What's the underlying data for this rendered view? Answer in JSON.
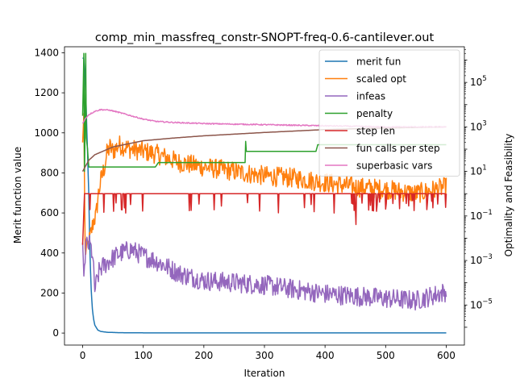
{
  "chart_data": {
    "type": "line",
    "title": "comp_min_massfreq_constr-SNOPT-freq-0.6-cantilever.out",
    "xlabel": "Iteration",
    "ylabel": "Merit function value",
    "y2label": "Optimality and Feasibility",
    "xlim": [
      -30,
      630
    ],
    "ylim": [
      -60,
      1430
    ],
    "y2lim_log10": [
      -6.8,
      6.6
    ],
    "x_ticks": [
      0,
      100,
      200,
      300,
      400,
      500,
      600
    ],
    "y_ticks": [
      0,
      200,
      400,
      600,
      800,
      1000,
      1200,
      1400
    ],
    "y2_ticks": [
      {
        "exp": -5,
        "label": "10",
        "sup": "−5"
      },
      {
        "exp": -3,
        "label": "10",
        "sup": "−3"
      },
      {
        "exp": -1,
        "label": "10",
        "sup": "−1"
      },
      {
        "exp": 1,
        "label": "10",
        "sup": "1"
      },
      {
        "exp": 3,
        "label": "10",
        "sup": "3"
      },
      {
        "exp": 5,
        "label": "10",
        "sup": "5"
      }
    ],
    "n_iterations": 600,
    "legend_position": "top-right",
    "series": [
      {
        "name": "merit fun",
        "axis": "left",
        "color": "#1f77b4",
        "points": [
          [
            0,
            1375
          ],
          [
            2,
            1370
          ],
          [
            5,
            1200
          ],
          [
            8,
            900
          ],
          [
            10,
            700
          ],
          [
            12,
            400
          ],
          [
            14,
            220
          ],
          [
            16,
            120
          ],
          [
            18,
            70
          ],
          [
            20,
            40
          ],
          [
            25,
            15
          ],
          [
            30,
            8
          ],
          [
            40,
            4
          ],
          [
            60,
            2
          ],
          [
            100,
            1
          ],
          [
            600,
            1
          ]
        ]
      },
      {
        "name": "scaled opt",
        "axis": "right",
        "color": "#ff7f0e",
        "base_log10": 1.0,
        "points": [
          [
            0,
            2.3
          ],
          [
            2,
            3.6
          ],
          [
            4,
            -2.6
          ],
          [
            8,
            -2.4
          ],
          [
            12,
            -2.0
          ],
          [
            18,
            -1.2
          ],
          [
            22,
            -1.0
          ],
          [
            26,
            0.0
          ],
          [
            30,
            0.6
          ],
          [
            36,
            1.2
          ],
          [
            40,
            1.8
          ],
          [
            45,
            2.1
          ],
          [
            50,
            1.9
          ],
          [
            60,
            2.2
          ],
          [
            80,
            2.0
          ],
          [
            100,
            1.9
          ],
          [
            120,
            1.8
          ],
          [
            140,
            1.6
          ],
          [
            160,
            1.4
          ],
          [
            200,
            1.2
          ],
          [
            250,
            1.0
          ],
          [
            300,
            0.8
          ],
          [
            350,
            0.7
          ],
          [
            400,
            0.5
          ],
          [
            450,
            0.3
          ],
          [
            500,
            0.2
          ],
          [
            550,
            0.0
          ],
          [
            600,
            0.3
          ]
        ]
      },
      {
        "name": "infeas",
        "axis": "right",
        "color": "#9467bd",
        "base_log10": -3.0,
        "points": [
          [
            0,
            -2.2
          ],
          [
            2,
            -3.7
          ],
          [
            5,
            -2.3
          ],
          [
            12,
            -2.3
          ],
          [
            16,
            -2.7
          ],
          [
            20,
            -4.3
          ],
          [
            24,
            -3.9
          ],
          [
            28,
            -3.4
          ],
          [
            40,
            -3.1
          ],
          [
            50,
            -2.9
          ],
          [
            60,
            -2.7
          ],
          [
            80,
            -2.5
          ],
          [
            100,
            -2.8
          ],
          [
            120,
            -3.0
          ],
          [
            140,
            -3.3
          ],
          [
            160,
            -3.6
          ],
          [
            200,
            -3.9
          ],
          [
            250,
            -4.0
          ],
          [
            300,
            -4.1
          ],
          [
            350,
            -4.3
          ],
          [
            400,
            -4.5
          ],
          [
            450,
            -4.6
          ],
          [
            500,
            -4.7
          ],
          [
            550,
            -4.8
          ],
          [
            600,
            -4.4
          ]
        ]
      },
      {
        "name": "penalty",
        "axis": "right",
        "color": "#2ca02c",
        "base_log10": 1.0,
        "points": [
          [
            0,
            3.5
          ],
          [
            2,
            6.3
          ],
          [
            3,
            1.0
          ],
          [
            4,
            3.0
          ],
          [
            5,
            6.3
          ],
          [
            6,
            2.5
          ],
          [
            8,
            2.0
          ],
          [
            10,
            1.2
          ],
          [
            12,
            1.2
          ],
          [
            120,
            1.2
          ],
          [
            125,
            1.4
          ],
          [
            268,
            1.4
          ],
          [
            268,
            2.8
          ],
          [
            270,
            1.9
          ],
          [
            385,
            1.9
          ],
          [
            388,
            2.2
          ],
          [
            600,
            2.2
          ]
        ]
      },
      {
        "name": "step len",
        "axis": "right",
        "color": "#d62728",
        "base_log10": 0.0,
        "points": [
          [
            0,
            -2.3
          ],
          [
            3,
            0.0
          ],
          [
            600,
            0.0
          ]
        ]
      },
      {
        "name": "fun calls per step",
        "axis": "right",
        "color": "#8c564b",
        "points": [
          [
            0,
            1.0
          ],
          [
            10,
            1.5
          ],
          [
            20,
            1.75
          ],
          [
            50,
            2.1
          ],
          [
            100,
            2.38
          ],
          [
            150,
            2.5
          ],
          [
            200,
            2.6
          ],
          [
            300,
            2.75
          ],
          [
            400,
            2.88
          ],
          [
            500,
            2.95
          ],
          [
            600,
            3.0
          ]
        ]
      },
      {
        "name": "superbasic vars",
        "axis": "right",
        "color": "#e377c2",
        "base_log10": 3.0,
        "points": [
          [
            0,
            3.15
          ],
          [
            5,
            3.4
          ],
          [
            10,
            3.55
          ],
          [
            20,
            3.7
          ],
          [
            30,
            3.78
          ],
          [
            45,
            3.75
          ],
          [
            60,
            3.65
          ],
          [
            80,
            3.5
          ],
          [
            100,
            3.35
          ],
          [
            120,
            3.25
          ],
          [
            150,
            3.2
          ],
          [
            200,
            3.15
          ],
          [
            300,
            3.1
          ],
          [
            400,
            3.05
          ],
          [
            500,
            3.0
          ],
          [
            600,
            3.0
          ]
        ]
      }
    ]
  }
}
